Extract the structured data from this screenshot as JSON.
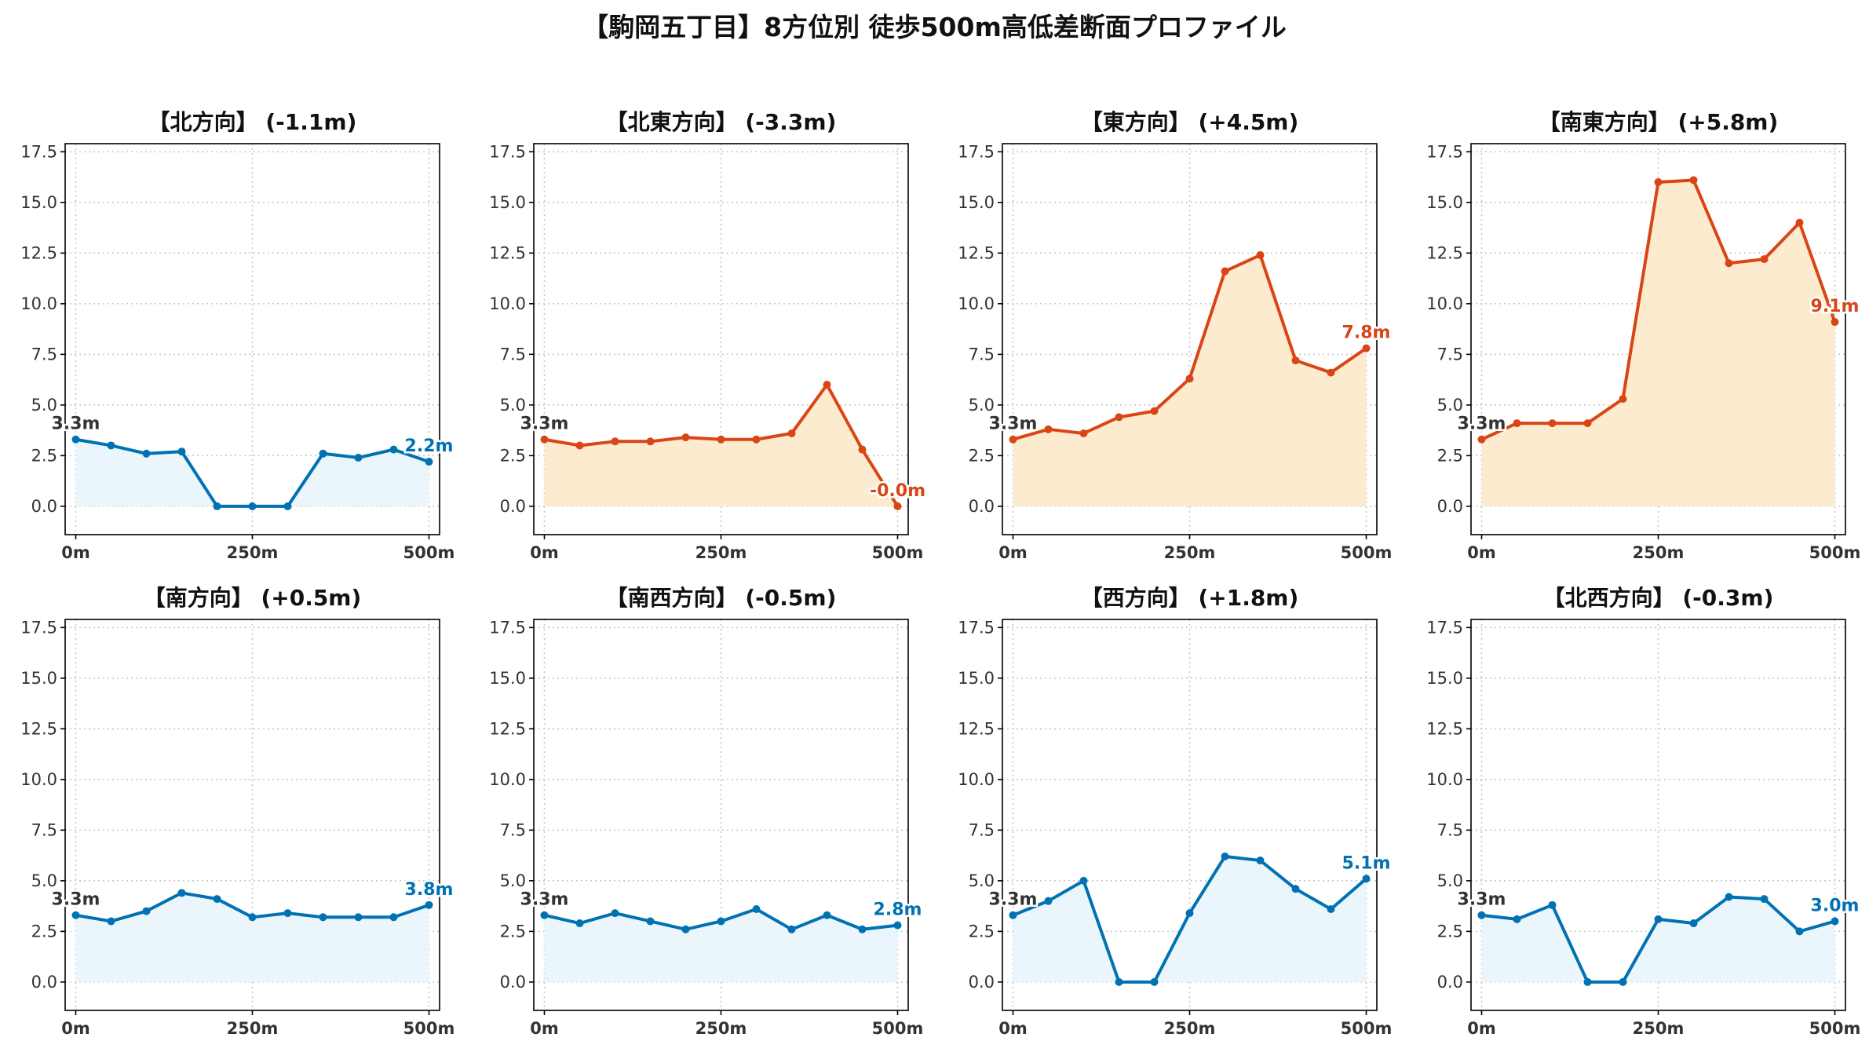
{
  "title": "【駒岡五丁目】8方位別 徒歩500m高低差断面プロファイル",
  "colors": {
    "down": "#0072b2",
    "down_fill": "#eaf6fb",
    "up": "#d94515",
    "up_fill": "#fdebd0"
  },
  "chart_data": [
    {
      "type": "area",
      "title": "【北方向】 (-1.1m)",
      "trend": "down",
      "x": [
        0,
        50,
        100,
        150,
        200,
        250,
        300,
        350,
        400,
        450,
        500
      ],
      "values": [
        3.3,
        3.0,
        2.6,
        2.7,
        0.0,
        0.0,
        0.0,
        2.6,
        2.4,
        2.8,
        2.2
      ],
      "start_label": "3.3m",
      "end_label": "2.2m",
      "xticks": [
        "0m",
        "250m",
        "500m"
      ],
      "yticks": [
        "0.0",
        "2.5",
        "5.0",
        "7.5",
        "10.0",
        "12.5",
        "15.0",
        "17.5"
      ],
      "ylim": [
        -1.4,
        17.9
      ],
      "xlim": [
        -15,
        515
      ],
      "grid": true
    },
    {
      "type": "area",
      "title": "【北東方向】 (-3.3m)",
      "trend": "up",
      "x": [
        0,
        50,
        100,
        150,
        200,
        250,
        300,
        350,
        400,
        450,
        500
      ],
      "values": [
        3.3,
        3.0,
        3.2,
        3.2,
        3.4,
        3.3,
        3.3,
        3.6,
        6.0,
        2.8,
        0.0
      ],
      "start_label": "3.3m",
      "end_label": "-0.0m",
      "xticks": [
        "0m",
        "250m",
        "500m"
      ],
      "yticks": [
        "0.0",
        "2.5",
        "5.0",
        "7.5",
        "10.0",
        "12.5",
        "15.0",
        "17.5"
      ],
      "ylim": [
        -1.4,
        17.9
      ],
      "xlim": [
        -15,
        515
      ],
      "grid": true
    },
    {
      "type": "area",
      "title": "【東方向】 (+4.5m)",
      "trend": "up",
      "x": [
        0,
        50,
        100,
        150,
        200,
        250,
        300,
        350,
        400,
        450,
        500
      ],
      "values": [
        3.3,
        3.8,
        3.6,
        4.4,
        4.7,
        6.3,
        11.6,
        12.4,
        7.2,
        6.6,
        7.8
      ],
      "start_label": "3.3m",
      "end_label": "7.8m",
      "xticks": [
        "0m",
        "250m",
        "500m"
      ],
      "yticks": [
        "0.0",
        "2.5",
        "5.0",
        "7.5",
        "10.0",
        "12.5",
        "15.0",
        "17.5"
      ],
      "ylim": [
        -1.4,
        17.9
      ],
      "xlim": [
        -15,
        515
      ],
      "grid": true
    },
    {
      "type": "area",
      "title": "【南東方向】 (+5.8m)",
      "trend": "up",
      "x": [
        0,
        50,
        100,
        150,
        200,
        250,
        300,
        350,
        400,
        450,
        500
      ],
      "values": [
        3.3,
        4.1,
        4.1,
        4.1,
        5.3,
        16.0,
        16.1,
        12.0,
        12.2,
        14.0,
        9.1
      ],
      "start_label": "3.3m",
      "end_label": "9.1m",
      "xticks": [
        "0m",
        "250m",
        "500m"
      ],
      "yticks": [
        "0.0",
        "2.5",
        "5.0",
        "7.5",
        "10.0",
        "12.5",
        "15.0",
        "17.5"
      ],
      "ylim": [
        -1.4,
        17.9
      ],
      "xlim": [
        -15,
        515
      ],
      "grid": true
    },
    {
      "type": "area",
      "title": "【南方向】 (+0.5m)",
      "trend": "down",
      "x": [
        0,
        50,
        100,
        150,
        200,
        250,
        300,
        350,
        400,
        450,
        500
      ],
      "values": [
        3.3,
        3.0,
        3.5,
        4.4,
        4.1,
        3.2,
        3.4,
        3.2,
        3.2,
        3.2,
        3.8
      ],
      "start_label": "3.3m",
      "end_label": "3.8m",
      "xticks": [
        "0m",
        "250m",
        "500m"
      ],
      "yticks": [
        "0.0",
        "2.5",
        "5.0",
        "7.5",
        "10.0",
        "12.5",
        "15.0",
        "17.5"
      ],
      "ylim": [
        -1.4,
        17.9
      ],
      "xlim": [
        -15,
        515
      ],
      "grid": true
    },
    {
      "type": "area",
      "title": "【南西方向】 (-0.5m)",
      "trend": "down",
      "x": [
        0,
        50,
        100,
        150,
        200,
        250,
        300,
        350,
        400,
        450,
        500
      ],
      "values": [
        3.3,
        2.9,
        3.4,
        3.0,
        2.6,
        3.0,
        3.6,
        2.6,
        3.3,
        2.6,
        2.8
      ],
      "start_label": "3.3m",
      "end_label": "2.8m",
      "xticks": [
        "0m",
        "250m",
        "500m"
      ],
      "yticks": [
        "0.0",
        "2.5",
        "5.0",
        "7.5",
        "10.0",
        "12.5",
        "15.0",
        "17.5"
      ],
      "ylim": [
        -1.4,
        17.9
      ],
      "xlim": [
        -15,
        515
      ],
      "grid": true
    },
    {
      "type": "area",
      "title": "【西方向】 (+1.8m)",
      "trend": "down",
      "x": [
        0,
        50,
        100,
        150,
        200,
        250,
        300,
        350,
        400,
        450,
        500
      ],
      "values": [
        3.3,
        4.0,
        5.0,
        0.0,
        0.0,
        3.4,
        6.2,
        6.0,
        4.6,
        3.6,
        5.1
      ],
      "start_label": "3.3m",
      "end_label": "5.1m",
      "xticks": [
        "0m",
        "250m",
        "500m"
      ],
      "yticks": [
        "0.0",
        "2.5",
        "5.0",
        "7.5",
        "10.0",
        "12.5",
        "15.0",
        "17.5"
      ],
      "ylim": [
        -1.4,
        17.9
      ],
      "xlim": [
        -15,
        515
      ],
      "grid": true
    },
    {
      "type": "area",
      "title": "【北西方向】 (-0.3m)",
      "trend": "down",
      "x": [
        0,
        50,
        100,
        150,
        200,
        250,
        300,
        350,
        400,
        450,
        500
      ],
      "values": [
        3.3,
        3.1,
        3.8,
        0.0,
        0.0,
        3.1,
        2.9,
        4.2,
        4.1,
        2.5,
        3.0
      ],
      "start_label": "3.3m",
      "end_label": "3.0m",
      "xticks": [
        "0m",
        "250m",
        "500m"
      ],
      "yticks": [
        "0.0",
        "2.5",
        "5.0",
        "7.5",
        "10.0",
        "12.5",
        "15.0",
        "17.5"
      ],
      "ylim": [
        -1.4,
        17.9
      ],
      "xlim": [
        -15,
        515
      ],
      "grid": true
    }
  ]
}
